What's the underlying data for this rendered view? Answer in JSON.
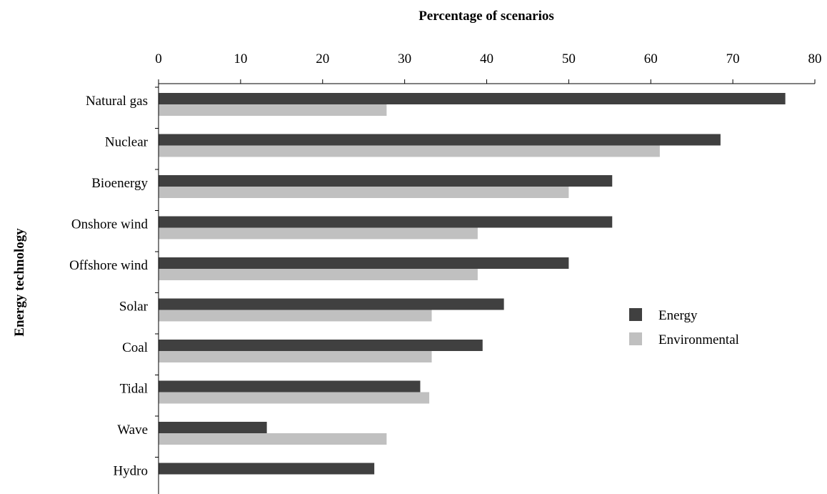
{
  "chart_data": {
    "type": "bar",
    "orientation": "horizontal",
    "xlabel": "Percentage of scenarios",
    "ylabel": "Energy technology",
    "xlim": [
      0,
      80
    ],
    "xticks": [
      "0",
      "10",
      "20",
      "30",
      "40",
      "50",
      "60",
      "70",
      "80"
    ],
    "x_axis_position": "top",
    "categories": [
      "Natural gas",
      "Nuclear",
      "Bioenergy",
      "Onshore wind",
      "Offshore wind",
      "Solar",
      "Coal",
      "Tidal",
      "Wave",
      "Hydro"
    ],
    "series": [
      {
        "name": "Energy",
        "color": "#404040",
        "values": [
          76.4,
          68.5,
          55.3,
          55.3,
          50.0,
          42.1,
          39.5,
          31.9,
          13.2,
          26.3
        ]
      },
      {
        "name": "Environmental",
        "color": "#c0c0c0",
        "values": [
          27.8,
          61.1,
          50.0,
          38.9,
          38.9,
          33.3,
          33.3,
          33.0,
          27.8,
          0
        ]
      }
    ],
    "legend": {
      "position": "right",
      "entries": [
        "Energy",
        "Environmental"
      ]
    },
    "grid": false
  }
}
